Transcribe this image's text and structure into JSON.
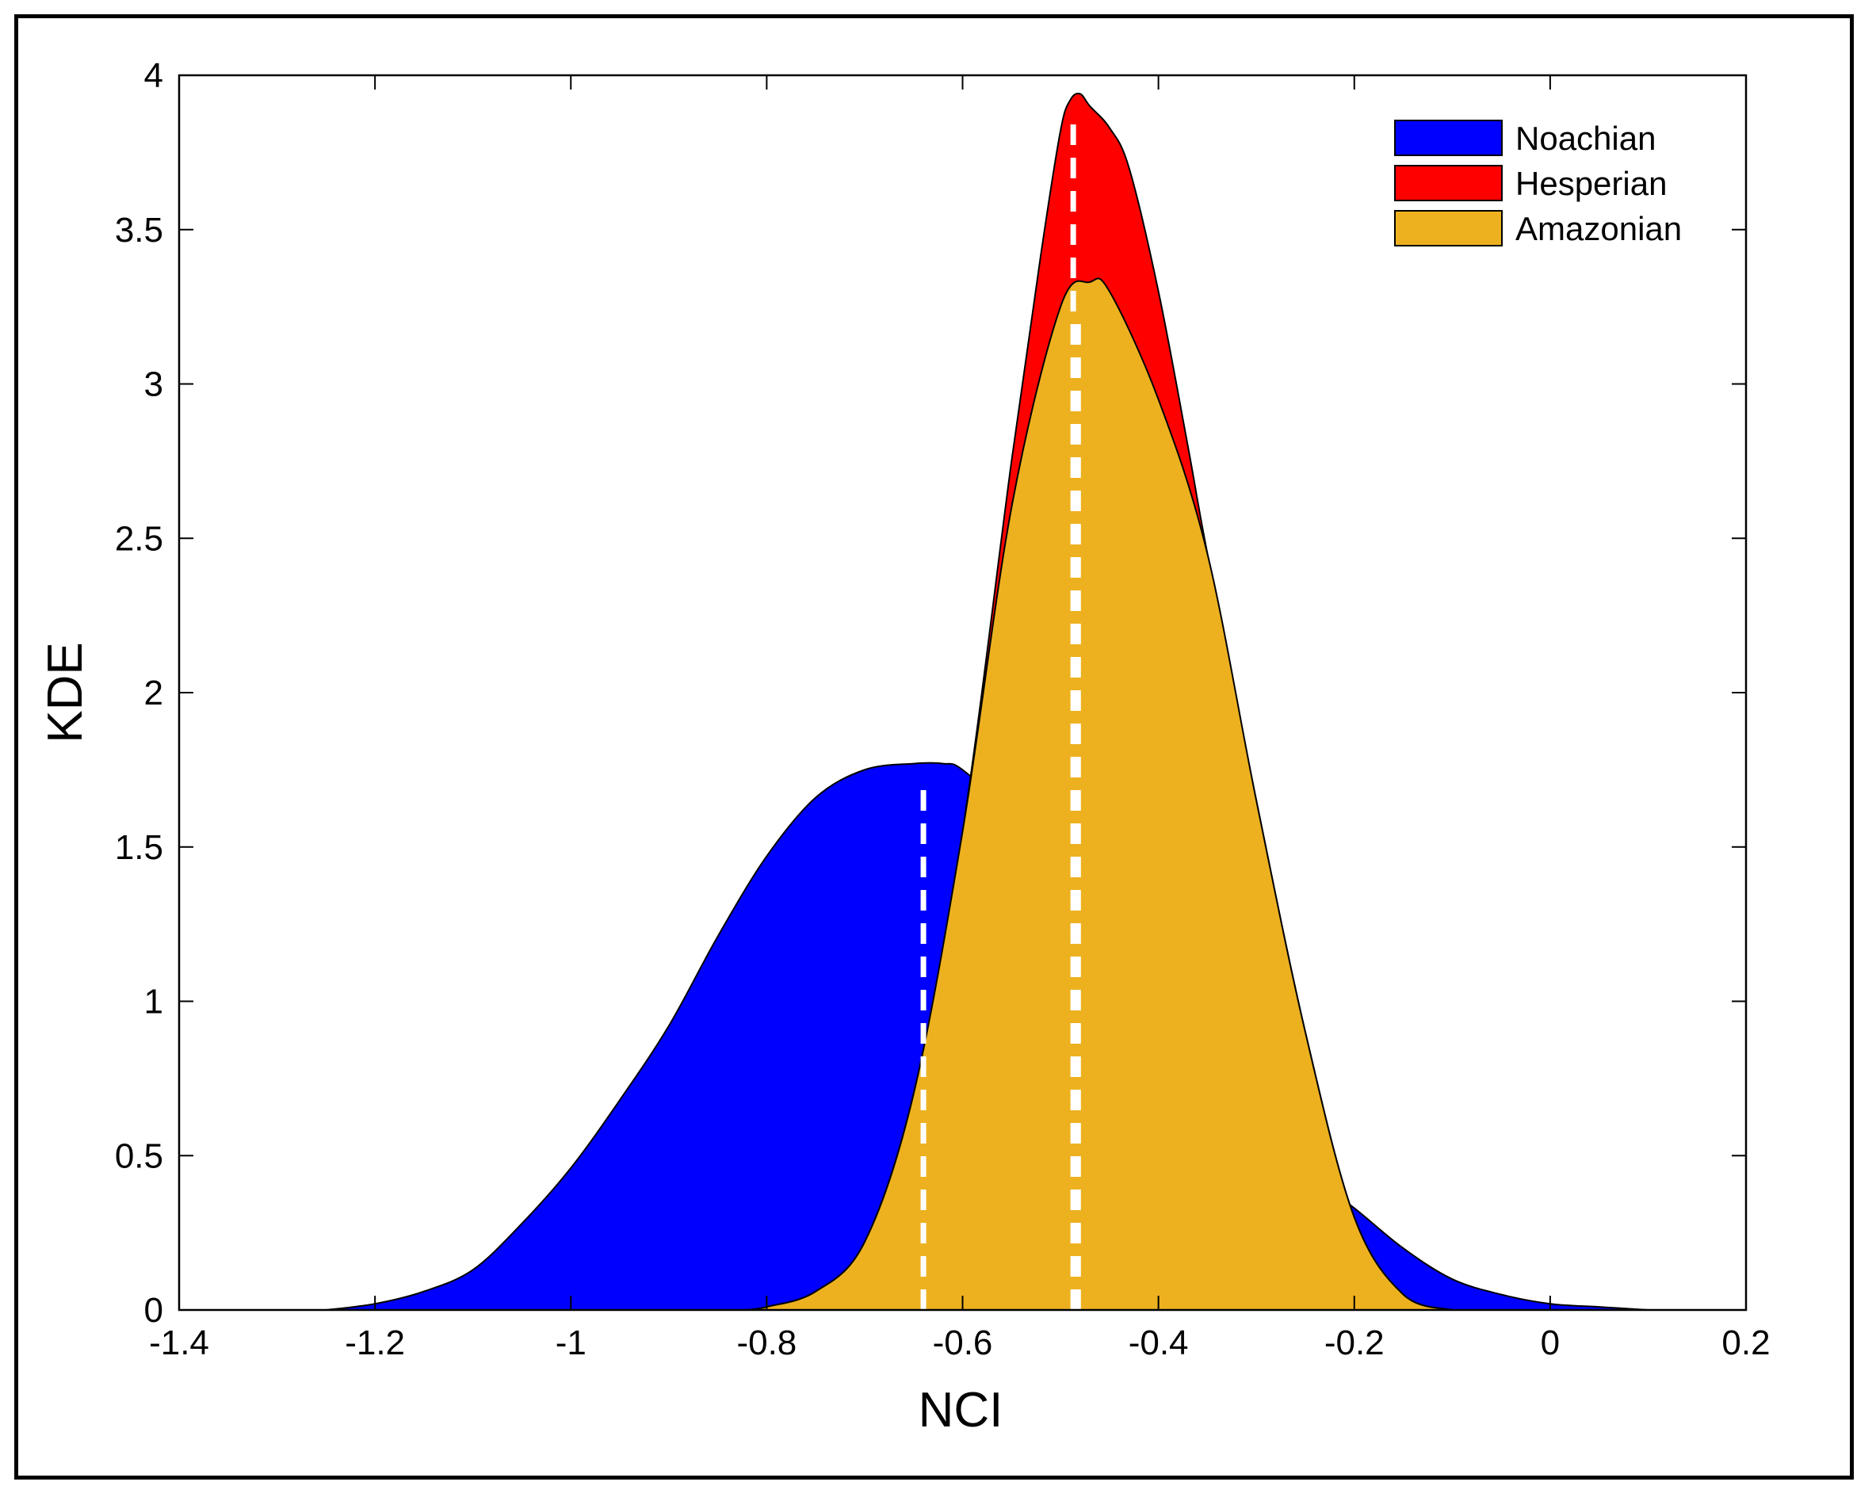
{
  "chart_data": {
    "type": "area",
    "title": "",
    "xlabel": "NCI",
    "ylabel": "KDE",
    "xlim": [
      -1.4,
      0.2
    ],
    "ylim": [
      0,
      4
    ],
    "xticks": [
      -1.4,
      -1.2,
      -1,
      -0.8,
      -0.6,
      -0.4,
      -0.2,
      0,
      0.2
    ],
    "xtick_labels": [
      "-1.4",
      "-1.2",
      "-1",
      "-0.8",
      "-0.6",
      "-0.4",
      "-0.2",
      "0",
      "0.2"
    ],
    "yticks": [
      0,
      0.5,
      1,
      1.5,
      2,
      2.5,
      3,
      3.5,
      4
    ],
    "ytick_labels": [
      "0",
      "0.5",
      "1",
      "1.5",
      "2",
      "2.5",
      "3",
      "3.5",
      "4"
    ],
    "legend_position": "top-right",
    "series": [
      {
        "name": "Noachian",
        "color": "#0000ff",
        "median": -0.64,
        "x": [
          -1.25,
          -1.2,
          -1.15,
          -1.1,
          -1.05,
          -1.0,
          -0.95,
          -0.9,
          -0.85,
          -0.8,
          -0.75,
          -0.7,
          -0.65,
          -0.62,
          -0.6,
          -0.55,
          -0.5,
          -0.45,
          -0.4,
          -0.35,
          -0.3,
          -0.25,
          -0.2,
          -0.15,
          -0.1,
          -0.05,
          0.0,
          0.05,
          0.1
        ],
        "y": [
          0.0,
          0.02,
          0.06,
          0.13,
          0.28,
          0.46,
          0.68,
          0.92,
          1.21,
          1.47,
          1.66,
          1.75,
          1.77,
          1.77,
          1.75,
          1.6,
          1.37,
          1.18,
          1.0,
          0.8,
          0.6,
          0.45,
          0.33,
          0.2,
          0.1,
          0.05,
          0.02,
          0.01,
          0.0
        ]
      },
      {
        "name": "Hesperian",
        "color": "#ff0000",
        "median": -0.487,
        "x": [
          -0.82,
          -0.8,
          -0.75,
          -0.7,
          -0.65,
          -0.6,
          -0.55,
          -0.52,
          -0.5,
          -0.49,
          -0.48,
          -0.47,
          -0.45,
          -0.43,
          -0.4,
          -0.37,
          -0.35,
          -0.3,
          -0.25,
          -0.2,
          -0.15,
          -0.1
        ],
        "y": [
          0.0,
          0.01,
          0.06,
          0.22,
          0.7,
          1.55,
          2.75,
          3.42,
          3.82,
          3.92,
          3.94,
          3.9,
          3.83,
          3.7,
          3.3,
          2.8,
          2.45,
          1.65,
          0.9,
          0.3,
          0.05,
          0.0
        ]
      },
      {
        "name": "Amazonian",
        "color": "#edb120",
        "median": -0.482,
        "x": [
          -0.82,
          -0.8,
          -0.75,
          -0.7,
          -0.65,
          -0.6,
          -0.55,
          -0.5,
          -0.47,
          -0.45,
          -0.4,
          -0.35,
          -0.3,
          -0.25,
          -0.2,
          -0.15,
          -0.1
        ],
        "y": [
          0.0,
          0.01,
          0.06,
          0.22,
          0.7,
          1.55,
          2.6,
          3.25,
          3.33,
          3.3,
          2.95,
          2.45,
          1.65,
          0.9,
          0.3,
          0.05,
          0.0
        ]
      }
    ]
  }
}
